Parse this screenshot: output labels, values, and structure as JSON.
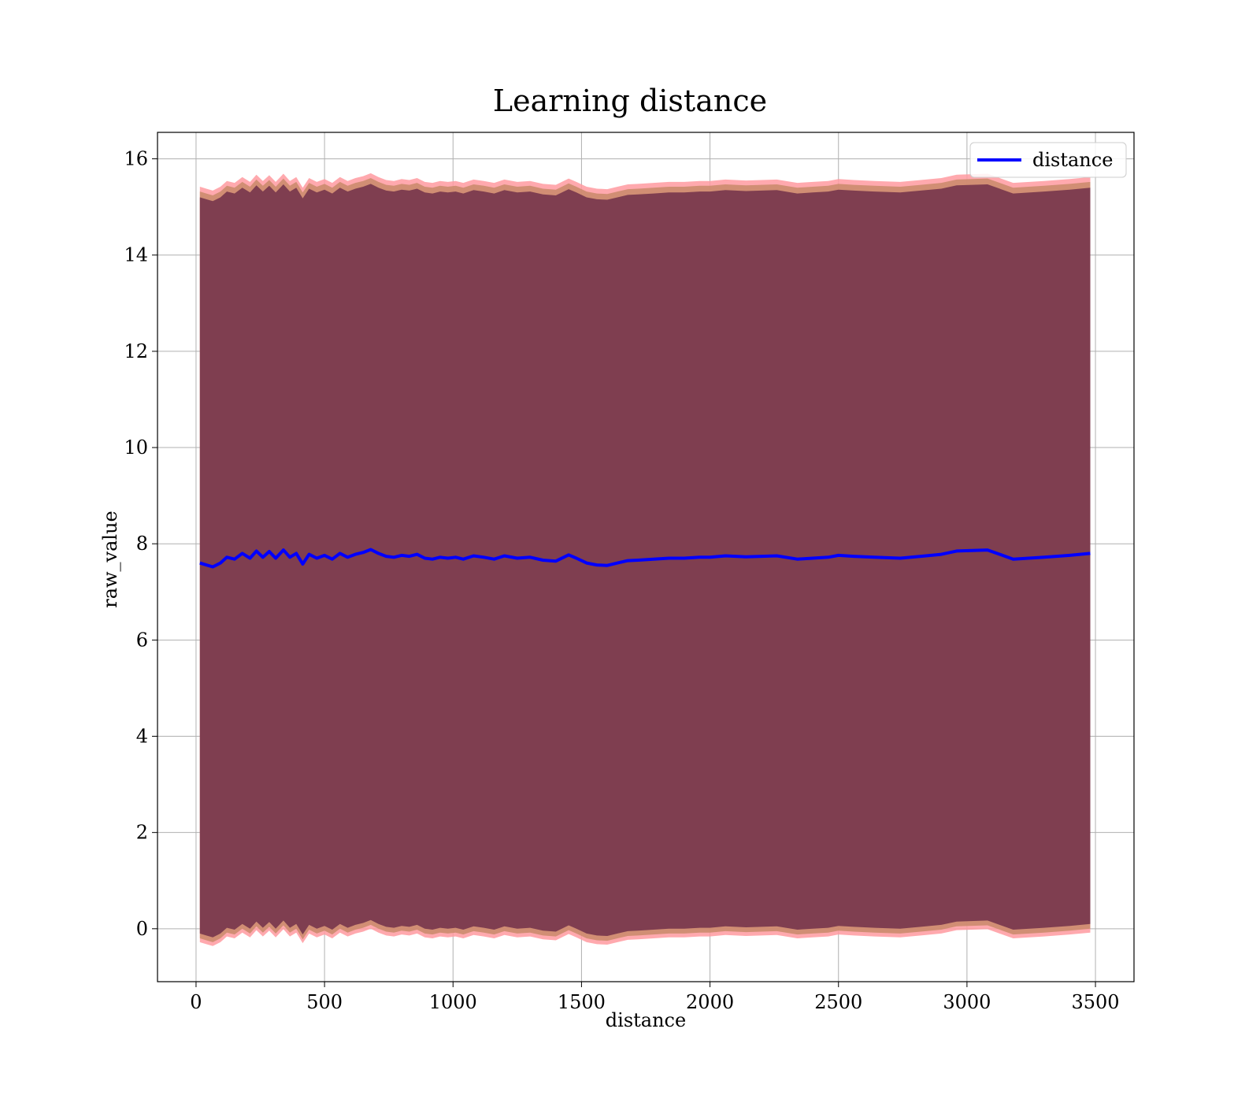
{
  "chart_data": {
    "type": "line",
    "title": "Learning distance",
    "xlabel": "distance",
    "ylabel": "raw_value",
    "xlim": [
      -150,
      3650
    ],
    "ylim": [
      -1.1,
      16.55
    ],
    "xticks": [
      0,
      500,
      1000,
      1500,
      2000,
      2500,
      3000,
      3500
    ],
    "yticks": [
      0,
      2,
      4,
      6,
      8,
      10,
      12,
      14,
      16
    ],
    "grid": true,
    "legend_position": "top-right",
    "colors": {
      "line": "#0000ff",
      "band_dark": "#7a3a4e",
      "band_mid": "#c98a6a",
      "band_light": "#ff9aa0",
      "grid": "#b0b0b0"
    },
    "series": [
      {
        "name": "distance",
        "x": [
          15,
          40,
          65,
          95,
          120,
          150,
          180,
          210,
          235,
          260,
          285,
          310,
          340,
          365,
          390,
          415,
          440,
          470,
          500,
          530,
          560,
          590,
          620,
          650,
          680,
          710,
          740,
          770,
          800,
          830,
          860,
          890,
          920,
          950,
          980,
          1010,
          1040,
          1080,
          1120,
          1160,
          1200,
          1250,
          1300,
          1350,
          1400,
          1450,
          1480,
          1520,
          1560,
          1600,
          1640,
          1680,
          1720,
          1780,
          1840,
          1900,
          1960,
          2000,
          2060,
          2140,
          2200,
          2260,
          2340,
          2400,
          2460,
          2500,
          2560,
          2640,
          2740,
          2820,
          2900,
          2960,
          3080,
          3180,
          3300,
          3400,
          3480
        ],
        "values": [
          7.6,
          7.56,
          7.52,
          7.6,
          7.72,
          7.68,
          7.8,
          7.7,
          7.85,
          7.72,
          7.84,
          7.7,
          7.87,
          7.72,
          7.8,
          7.58,
          7.78,
          7.7,
          7.76,
          7.68,
          7.8,
          7.72,
          7.78,
          7.82,
          7.88,
          7.8,
          7.74,
          7.72,
          7.76,
          7.74,
          7.78,
          7.7,
          7.68,
          7.72,
          7.7,
          7.72,
          7.68,
          7.75,
          7.72,
          7.68,
          7.75,
          7.7,
          7.72,
          7.66,
          7.64,
          7.77,
          7.7,
          7.6,
          7.56,
          7.55,
          7.6,
          7.65,
          7.66,
          7.68,
          7.7,
          7.7,
          7.72,
          7.72,
          7.75,
          7.73,
          7.74,
          7.75,
          7.68,
          7.7,
          7.72,
          7.76,
          7.74,
          7.72,
          7.7,
          7.74,
          7.78,
          7.85,
          7.87,
          7.68,
          7.72,
          7.76,
          7.8
        ]
      }
    ],
    "bands": [
      {
        "role": "outer",
        "lower_offset": -7.88,
        "upper_offset": 7.82
      },
      {
        "role": "middle",
        "lower_offset": -7.8,
        "upper_offset": 7.72
      },
      {
        "role": "inner",
        "lower_offset": -7.7,
        "upper_offset": 7.6
      }
    ]
  }
}
